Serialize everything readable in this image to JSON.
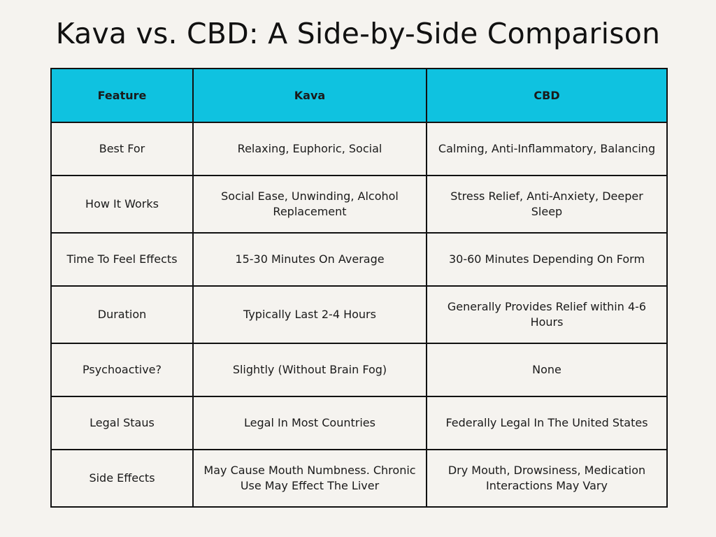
{
  "title": "Kava vs. CBD: A Side-by-Side Comparison",
  "colors": {
    "header_background": "#0fc2e0",
    "page_background": "#f5f3ef",
    "border": "#111111"
  },
  "table": {
    "headers": [
      "Feature",
      "Kava",
      "CBD"
    ],
    "rows": [
      [
        "Best For",
        "Relaxing, Euphoric, Social",
        "Calming, Anti-Inflammatory,  Balancing"
      ],
      [
        "How It Works",
        "Social Ease, Unwinding, Alcohol Replacement",
        "Stress Relief, Anti-Anxiety,  Deeper Sleep"
      ],
      [
        "Time To Feel Effects",
        "15-30 Minutes On Average",
        "30-60 Minutes Depending On Form"
      ],
      [
        "Duration",
        "Typically Last 2-4 Hours",
        "Generally Provides Relief within 4-6 Hours"
      ],
      [
        "Psychoactive?",
        "Slightly (Without Brain Fog)",
        "None"
      ],
      [
        "Legal Staus",
        "Legal In Most Countries",
        "Federally Legal In The United States"
      ],
      [
        "Side Effects",
        "May Cause Mouth Numbness. Chronic Use May Effect The Liver",
        "Dry Mouth, Drowsiness, Medication Interactions May Vary"
      ]
    ]
  }
}
